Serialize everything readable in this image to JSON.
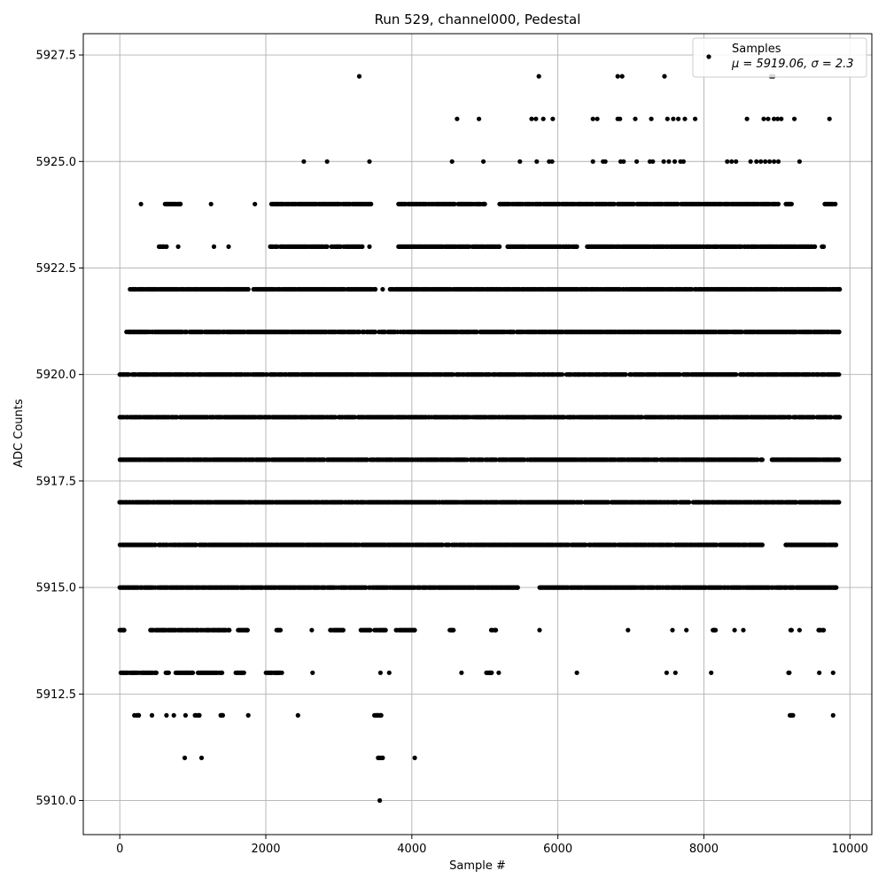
{
  "chart_data": {
    "type": "scatter",
    "title": "Run 529, channel000, Pedestal",
    "xlabel": "Sample #",
    "ylabel": "ADC Counts",
    "xlim": [
      -500,
      10300
    ],
    "ylim": [
      5909.2,
      5928.0
    ],
    "xticks": [
      0,
      2000,
      4000,
      6000,
      8000,
      10000
    ],
    "xtick_labels": [
      "0",
      "2000",
      "4000",
      "6000",
      "8000",
      "10000"
    ],
    "yticks": [
      5910.0,
      5912.5,
      5915.0,
      5917.5,
      5920.0,
      5922.5,
      5925.0,
      5927.5
    ],
    "ytick_labels": [
      "5910.0",
      "5912.5",
      "5915.0",
      "5917.5",
      "5920.0",
      "5922.5",
      "5925.0",
      "5927.5"
    ],
    "grid": true,
    "legend": {
      "location": "top-right",
      "entries": [
        "Samples",
        "μ = 5919.06, σ = 2.3"
      ]
    },
    "series": [
      {
        "name": "Samples",
        "color": "#000000",
        "n_samples": 9850,
        "mean": 5919.06,
        "sigma": 2.3,
        "points": [
          [
            3280,
            5927
          ],
          [
            5740,
            5927
          ],
          [
            6820,
            5927
          ],
          [
            6880,
            5927
          ],
          [
            7460,
            5927
          ],
          [
            8920,
            5927
          ],
          [
            8950,
            5927
          ],
          [
            4620,
            5926
          ],
          [
            4920,
            5926
          ],
          [
            5640,
            5926
          ],
          [
            5700,
            5926
          ],
          [
            5800,
            5926
          ],
          [
            5930,
            5926
          ],
          [
            6480,
            5926
          ],
          [
            6540,
            5926
          ],
          [
            6820,
            5926
          ],
          [
            6850,
            5926
          ],
          [
            7060,
            5926
          ],
          [
            7280,
            5926
          ],
          [
            7500,
            5926
          ],
          [
            7580,
            5926
          ],
          [
            7650,
            5926
          ],
          [
            7740,
            5926
          ],
          [
            7880,
            5926
          ],
          [
            8590,
            5926
          ],
          [
            8820,
            5926
          ],
          [
            8880,
            5926
          ],
          [
            8960,
            5926
          ],
          [
            9010,
            5926
          ],
          [
            9060,
            5926
          ],
          [
            9240,
            5926
          ],
          [
            9720,
            5926
          ],
          [
            2520,
            5925
          ],
          [
            2840,
            5925
          ],
          [
            3420,
            5925
          ],
          [
            4550,
            5925
          ],
          [
            4980,
            5925
          ],
          [
            5480,
            5925
          ],
          [
            5710,
            5925
          ],
          [
            5880,
            5925
          ],
          [
            5920,
            5925
          ],
          [
            6480,
            5925
          ],
          [
            6620,
            5925
          ],
          [
            6650,
            5925
          ],
          [
            6860,
            5925
          ],
          [
            6900,
            5925
          ],
          [
            7080,
            5925
          ],
          [
            7260,
            5925
          ],
          [
            7300,
            5925
          ],
          [
            7450,
            5925
          ],
          [
            7520,
            5925
          ],
          [
            7600,
            5925
          ],
          [
            7680,
            5925
          ],
          [
            7720,
            5925
          ],
          [
            8320,
            5925
          ],
          [
            8380,
            5925
          ],
          [
            8440,
            5925
          ],
          [
            8640,
            5925
          ],
          [
            8720,
            5925
          ],
          [
            8780,
            5925
          ],
          [
            8840,
            5925
          ],
          [
            8900,
            5925
          ],
          [
            8960,
            5925
          ],
          [
            9020,
            5925
          ],
          [
            9310,
            5925
          ]
        ],
        "band_coverage": [
          {
            "value": 5924,
            "ranges": [
              [
                290,
                290
              ],
              [
                620,
                830
              ],
              [
                1250,
                1250
              ],
              [
                1850,
                1850
              ],
              [
                2080,
                3440
              ],
              [
                3820,
                5000
              ],
              [
                5200,
                6300
              ],
              [
                6300,
                9020
              ],
              [
                9120,
                9200
              ],
              [
                9640,
                9800
              ]
            ]
          },
          {
            "value": 5923,
            "ranges": [
              [
                540,
                640
              ],
              [
                800,
                800
              ],
              [
                1290,
                1290
              ],
              [
                1490,
                1490
              ],
              [
                2060,
                2840
              ],
              [
                2900,
                3320
              ],
              [
                3420,
                3420
              ],
              [
                3820,
                5200
              ],
              [
                5300,
                6260
              ],
              [
                6400,
                9520
              ],
              [
                9620,
                9640
              ]
            ]
          },
          {
            "value": 5922,
            "ranges": [
              [
                140,
                1500
              ],
              [
                1520,
                1760
              ],
              [
                1830,
                3500
              ],
              [
                3600,
                3600
              ],
              [
                3700,
                9860
              ]
            ]
          },
          {
            "value": 5921,
            "ranges": [
              [
                90,
                3500
              ],
              [
                3550,
                9850
              ]
            ]
          },
          {
            "value": 5920,
            "ranges": [
              [
                0,
                9850
              ]
            ]
          },
          {
            "value": 5919,
            "ranges": [
              [
                0,
                9860
              ]
            ]
          },
          {
            "value": 5918,
            "ranges": [
              [
                0,
                8800
              ],
              [
                8930,
                9850
              ]
            ]
          },
          {
            "value": 5917,
            "ranges": [
              [
                0,
                9850
              ]
            ]
          },
          {
            "value": 5916,
            "ranges": [
              [
                0,
                8580
              ],
              [
                8600,
                8800
              ],
              [
                9120,
                9810
              ]
            ]
          },
          {
            "value": 5915,
            "ranges": [
              [
                0,
                5450
              ],
              [
                5750,
                9810
              ]
            ]
          },
          {
            "value": 5914,
            "ranges": [
              [
                0,
                60
              ],
              [
                420,
                1500
              ],
              [
                1620,
                1750
              ],
              [
                2150,
                2200
              ],
              [
                2630,
                2630
              ],
              [
                2880,
                3060
              ],
              [
                3300,
                3430
              ],
              [
                3490,
                3640
              ],
              [
                3770,
                4040
              ],
              [
                4520,
                4570
              ],
              [
                5090,
                5150
              ],
              [
                5750,
                5750
              ],
              [
                6960,
                6960
              ],
              [
                7570,
                7570
              ],
              [
                7760,
                7760
              ],
              [
                8110,
                8160
              ],
              [
                8420,
                8420
              ],
              [
                8540,
                8540
              ],
              [
                9190,
                9200
              ],
              [
                9310,
                9310
              ],
              [
                9570,
                9640
              ]
            ]
          },
          {
            "value": 5913,
            "ranges": [
              [
                0,
                500
              ],
              [
                630,
                670
              ],
              [
                770,
                1000
              ],
              [
                1070,
                1400
              ],
              [
                1590,
                1700
              ],
              [
                2000,
                2220
              ],
              [
                2640,
                2640
              ],
              [
                3570,
                3570
              ],
              [
                3690,
                3690
              ],
              [
                4680,
                4680
              ],
              [
                5020,
                5090
              ],
              [
                5190,
                5190
              ],
              [
                6260,
                6260
              ],
              [
                7490,
                7490
              ],
              [
                7610,
                7610
              ],
              [
                8100,
                8100
              ],
              [
                9160,
                9170
              ],
              [
                9580,
                9580
              ],
              [
                9770,
                9770
              ]
            ]
          },
          {
            "value": 5912,
            "ranges": [
              [
                200,
                260
              ],
              [
                440,
                440
              ],
              [
                640,
                640
              ],
              [
                740,
                740
              ],
              [
                900,
                900
              ],
              [
                1030,
                1090
              ],
              [
                1380,
                1410
              ],
              [
                1760,
                1760
              ],
              [
                2440,
                2440
              ],
              [
                3490,
                3580
              ],
              [
                9180,
                9220
              ],
              [
                9770,
                9770
              ]
            ]
          },
          {
            "value": 5911,
            "ranges": [
              [
                890,
                890
              ],
              [
                1120,
                1120
              ],
              [
                3540,
                3600
              ],
              [
                4040,
                4040
              ]
            ]
          },
          {
            "value": 5910,
            "ranges": [
              [
                3560,
                3560
              ]
            ]
          }
        ]
      }
    ]
  }
}
